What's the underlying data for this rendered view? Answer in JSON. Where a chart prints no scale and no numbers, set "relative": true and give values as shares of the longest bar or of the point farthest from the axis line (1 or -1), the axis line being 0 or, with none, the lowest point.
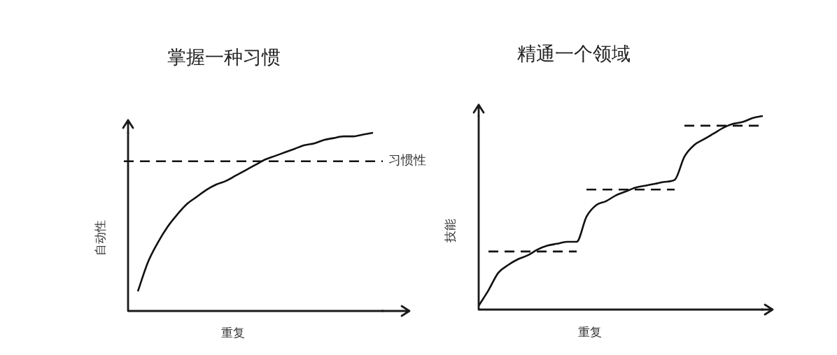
{
  "chart_data": [
    {
      "type": "line",
      "title": "掌握一种习惯",
      "xlabel": "重复",
      "ylabel": "自动性",
      "relative": true,
      "categories": [
        null,
        null,
        null,
        null,
        null,
        null,
        null,
        null,
        null,
        null,
        null,
        null,
        null,
        null,
        null,
        null,
        null,
        null,
        null,
        null,
        null,
        null,
        null,
        null,
        null,
        null,
        null
      ],
      "series": [
        {
          "color": "#111111",
          "values": [
            null,
            0.11,
            0.27,
            0.38,
            0.47,
            0.54,
            0.6,
            0.64,
            0.68,
            0.71,
            0.73,
            0.76,
            0.79,
            0.82,
            0.85,
            0.87,
            0.89,
            0.91,
            0.93,
            0.94,
            0.96,
            0.97,
            0.98,
            0.98,
            0.99,
            1.0,
            null
          ]
        }
      ],
      "ref_lines": [
        {
          "axis": "y",
          "value": 0.84,
          "label": "习惯性",
          "color": "#111111",
          "line_style": "dashed"
        }
      ]
    },
    {
      "type": "line",
      "title": "精通一个领域",
      "xlabel": "重复",
      "ylabel": "技能",
      "relative": true,
      "categories": [
        null,
        null,
        null,
        null,
        null,
        null,
        null,
        null,
        null,
        null,
        null,
        null,
        null,
        null,
        null,
        null,
        null,
        null,
        null,
        null,
        null,
        null,
        null,
        null,
        null,
        null,
        null,
        null,
        null,
        null
      ],
      "series": [
        {
          "color": "#111111",
          "values": [
            0.02,
            0.1,
            0.19,
            0.23,
            0.26,
            0.28,
            0.31,
            0.33,
            0.34,
            0.35,
            0.35,
            0.48,
            0.54,
            0.56,
            0.59,
            0.61,
            0.63,
            0.64,
            0.65,
            0.66,
            0.67,
            0.79,
            0.85,
            0.88,
            0.91,
            0.94,
            0.96,
            0.97,
            0.99,
            1.0
          ]
        },
        {
          "color": "#111111",
          "line_style": "dashed",
          "values": [
            null,
            0.3,
            0.3,
            0.3,
            0.3,
            0.3,
            0.3,
            0.3,
            0.3,
            0.3,
            0.3,
            null,
            null,
            null,
            null,
            null,
            null,
            null,
            null,
            null,
            null,
            null,
            null,
            null,
            null,
            null,
            null,
            null,
            null,
            null
          ]
        },
        {
          "color": "#111111",
          "line_style": "dashed",
          "values": [
            null,
            null,
            null,
            null,
            null,
            null,
            null,
            null,
            null,
            null,
            null,
            0.62,
            0.62,
            0.62,
            0.62,
            0.62,
            0.62,
            0.62,
            0.62,
            0.62,
            0.62,
            null,
            null,
            null,
            null,
            null,
            null,
            null,
            null,
            null
          ]
        },
        {
          "color": "#111111",
          "line_style": "dashed",
          "values": [
            null,
            null,
            null,
            null,
            null,
            null,
            null,
            null,
            null,
            null,
            null,
            null,
            null,
            null,
            null,
            null,
            null,
            null,
            null,
            null,
            null,
            0.95,
            0.95,
            0.95,
            0.95,
            0.95,
            0.95,
            0.95,
            0.95,
            0.95
          ]
        }
      ]
    }
  ]
}
